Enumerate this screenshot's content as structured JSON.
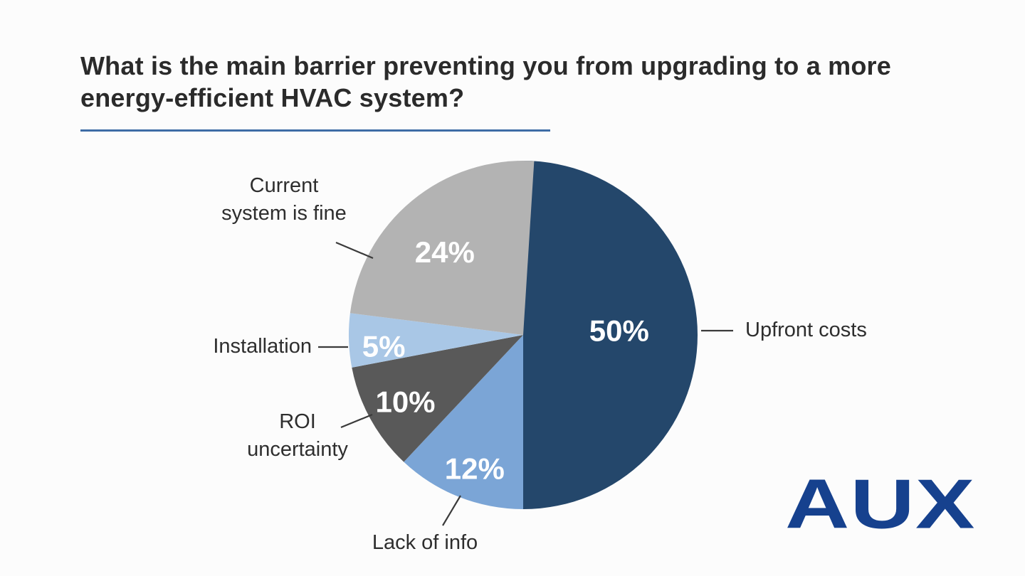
{
  "slide": {
    "title": "What is the main barrier preventing you from upgrading to a more energy-efficient HVAC system?",
    "accent_underline_color": "#3e6ca6",
    "background_color": "#fcfcfc"
  },
  "brand": {
    "logo_text": "AUX",
    "logo_color": "#16418e"
  },
  "chart_data": {
    "type": "pie",
    "title": "What is the main barrier preventing you from upgrading to a more energy-efficient HVAC system?",
    "direction": "clockwise",
    "start_angle_deg": 0,
    "legend_position": "none (callout labels with leader lines)",
    "value_label_color": "#ffffff",
    "leader_line_color": "#3a3a3a",
    "slices": [
      {
        "label": "Upfront costs",
        "value": 50,
        "color": "#24476b"
      },
      {
        "label": "Lack of info",
        "value": 12,
        "color": "#7ba5d6"
      },
      {
        "label": "ROI uncertainty",
        "value": 10,
        "color": "#595959"
      },
      {
        "label": "Installation",
        "value": 5,
        "color": "#a9c7e6"
      },
      {
        "label": "Current system is fine",
        "value": 24,
        "color": "#b3b3b3"
      }
    ]
  },
  "callouts": {
    "upfront": {
      "line1": "Upfront costs"
    },
    "lack_of_info": {
      "line1": "Lack of info"
    },
    "roi": {
      "line1": "ROI",
      "line2": "uncertainty"
    },
    "installation": {
      "line1": "Installation"
    },
    "current_system": {
      "line1": "Current",
      "line2": "system is fine"
    }
  }
}
